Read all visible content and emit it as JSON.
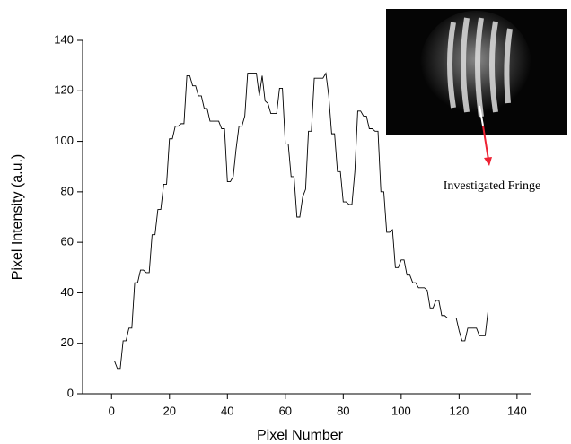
{
  "chart_data": {
    "type": "line",
    "x": [
      0,
      1,
      2,
      3,
      4,
      5,
      6,
      7,
      8,
      9,
      10,
      11,
      12,
      13,
      14,
      15,
      16,
      17,
      18,
      19,
      20,
      21,
      22,
      23,
      24,
      25,
      26,
      27,
      28,
      29,
      30,
      31,
      32,
      33,
      34,
      35,
      36,
      37,
      38,
      39,
      40,
      41,
      42,
      43,
      44,
      45,
      46,
      47,
      48,
      49,
      50,
      51,
      52,
      53,
      54,
      55,
      56,
      57,
      58,
      59,
      60,
      61,
      62,
      63,
      64,
      65,
      66,
      67,
      68,
      69,
      70,
      71,
      72,
      73,
      74,
      75,
      76,
      77,
      78,
      79,
      80,
      81,
      82,
      83,
      84,
      85,
      86,
      87,
      88,
      89,
      90,
      91,
      92,
      93,
      94,
      95,
      96,
      97,
      98,
      99,
      100,
      101,
      102,
      103,
      104,
      105,
      106,
      107,
      108,
      109,
      110,
      111,
      112,
      113,
      114,
      115,
      116,
      117,
      118,
      119,
      120,
      121,
      122,
      123,
      124,
      125,
      126,
      127,
      128,
      129,
      130
    ],
    "values": [
      13,
      13,
      10,
      10,
      21,
      21,
      26,
      26,
      44,
      44,
      49,
      49,
      48,
      48,
      63,
      63,
      73,
      73,
      83,
      83,
      101,
      101,
      106,
      106,
      107,
      107,
      126,
      126,
      122,
      122,
      118,
      118,
      113,
      113,
      108,
      108,
      108,
      108,
      105,
      105,
      84,
      84,
      86,
      97,
      106,
      106,
      110,
      127,
      127,
      127,
      127,
      118,
      126,
      116,
      115,
      111,
      111,
      111,
      121,
      121,
      99,
      99,
      86,
      86,
      70,
      70,
      78,
      81,
      104,
      104,
      125,
      125,
      125,
      125,
      127,
      118,
      103,
      103,
      88,
      88,
      76,
      76,
      75,
      75,
      88,
      112,
      112,
      110,
      110,
      105,
      105,
      104,
      104,
      80,
      80,
      64,
      64,
      65,
      50,
      50,
      53,
      53,
      47,
      47,
      44,
      44,
      42,
      42,
      42,
      41,
      34,
      34,
      37,
      37,
      31,
      31,
      30,
      30,
      30,
      30,
      25,
      21,
      21,
      26,
      26,
      26,
      26,
      23,
      23,
      23,
      33
    ],
    "color": "#000000",
    "xlabel": "Pixel Number",
    "ylabel": "Pixel Intensity (a.u.)",
    "annotation": "Investigated Fringe",
    "xlim": [
      -10,
      145
    ],
    "ylim": [
      0,
      140
    ],
    "xticks": [
      0,
      20,
      40,
      60,
      80,
      100,
      120,
      140
    ],
    "yticks": [
      0,
      20,
      40,
      60,
      80,
      100,
      120,
      140
    ]
  }
}
